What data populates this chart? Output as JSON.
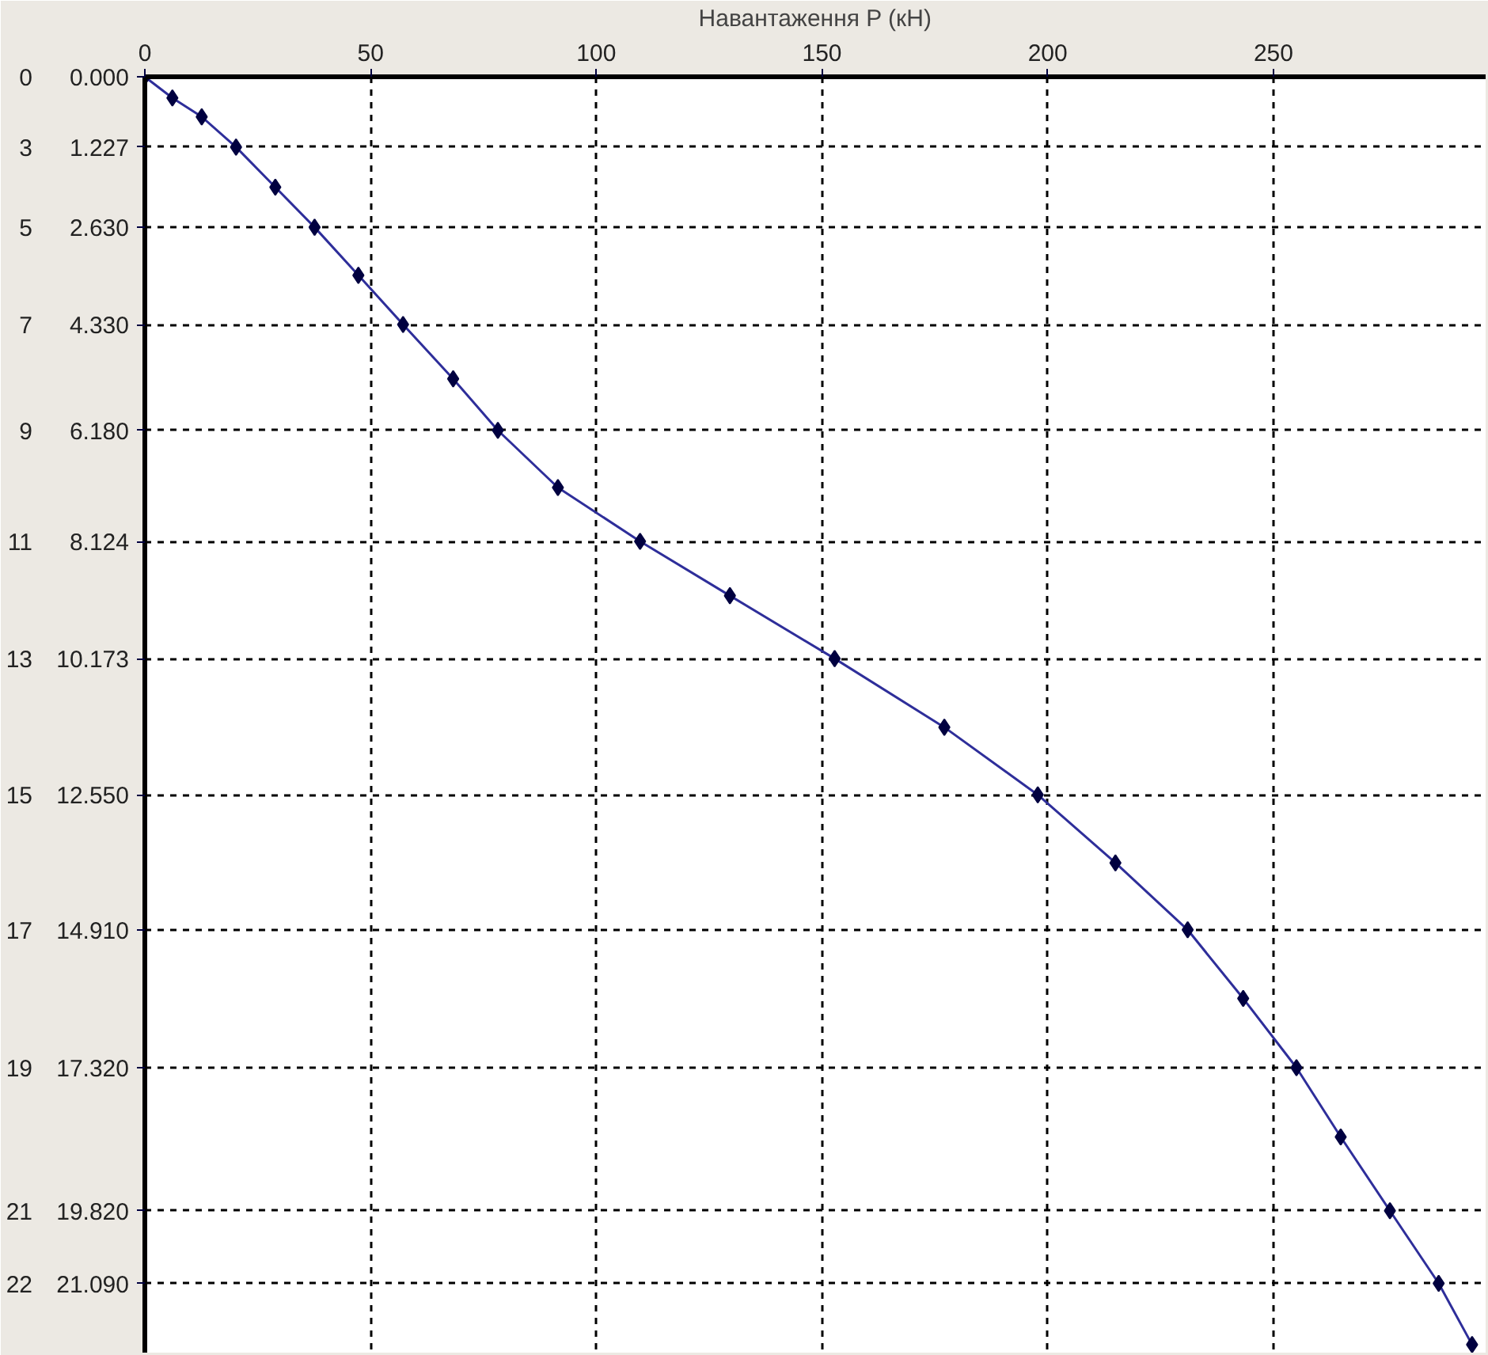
{
  "chart_data": {
    "type": "line",
    "xlabel": "Навантаження P (кН)",
    "x": [
      0,
      6.1,
      12.6,
      20.2,
      28.9,
      37.6,
      47.3,
      57.2,
      68.3,
      78.2,
      91.5,
      109.7,
      129.6,
      152.8,
      177.1,
      197.8,
      215.0,
      231.0,
      243.3,
      255.1,
      264.9,
      275.8,
      286.6,
      294.0
    ],
    "series": [
      {
        "color": "#2e2e9a",
        "values": [
          0,
          0.37,
          0.7,
          1.23,
          1.93,
          2.63,
          3.47,
          4.33,
          5.28,
          6.18,
          7.18,
          8.12,
          9.07,
          10.17,
          11.37,
          12.55,
          13.74,
          14.91,
          16.11,
          17.32,
          18.53,
          19.82,
          21.09,
          22.16
        ]
      }
    ],
    "xlim": [
      0,
      297
    ],
    "xticks": [
      0,
      50,
      100,
      150,
      200,
      250
    ],
    "ylim": [
      22.3,
      0
    ],
    "yticks": [
      {
        "value": 0,
        "label": "0.000"
      },
      {
        "value": 1.227,
        "label": "1.227"
      },
      {
        "value": 2.63,
        "label": "2.630"
      },
      {
        "value": 4.33,
        "label": "4.330"
      },
      {
        "value": 6.18,
        "label": "6.180"
      },
      {
        "value": 8.124,
        "label": "8.124"
      },
      {
        "value": 10.173,
        "label": "10.173"
      },
      {
        "value": 12.55,
        "label": "12.550"
      },
      {
        "value": 14.91,
        "label": "14.910"
      },
      {
        "value": 17.32,
        "label": "17.320"
      },
      {
        "value": 19.82,
        "label": "19.820"
      },
      {
        "value": 21.09,
        "label": "21.090"
      }
    ],
    "annotations": [
      "0",
      "3",
      "5",
      "7",
      "9",
      "11",
      "13",
      "15",
      "17",
      "19",
      "21",
      "22"
    ],
    "grid": true,
    "marker": "diamond",
    "line_style": "solid"
  }
}
